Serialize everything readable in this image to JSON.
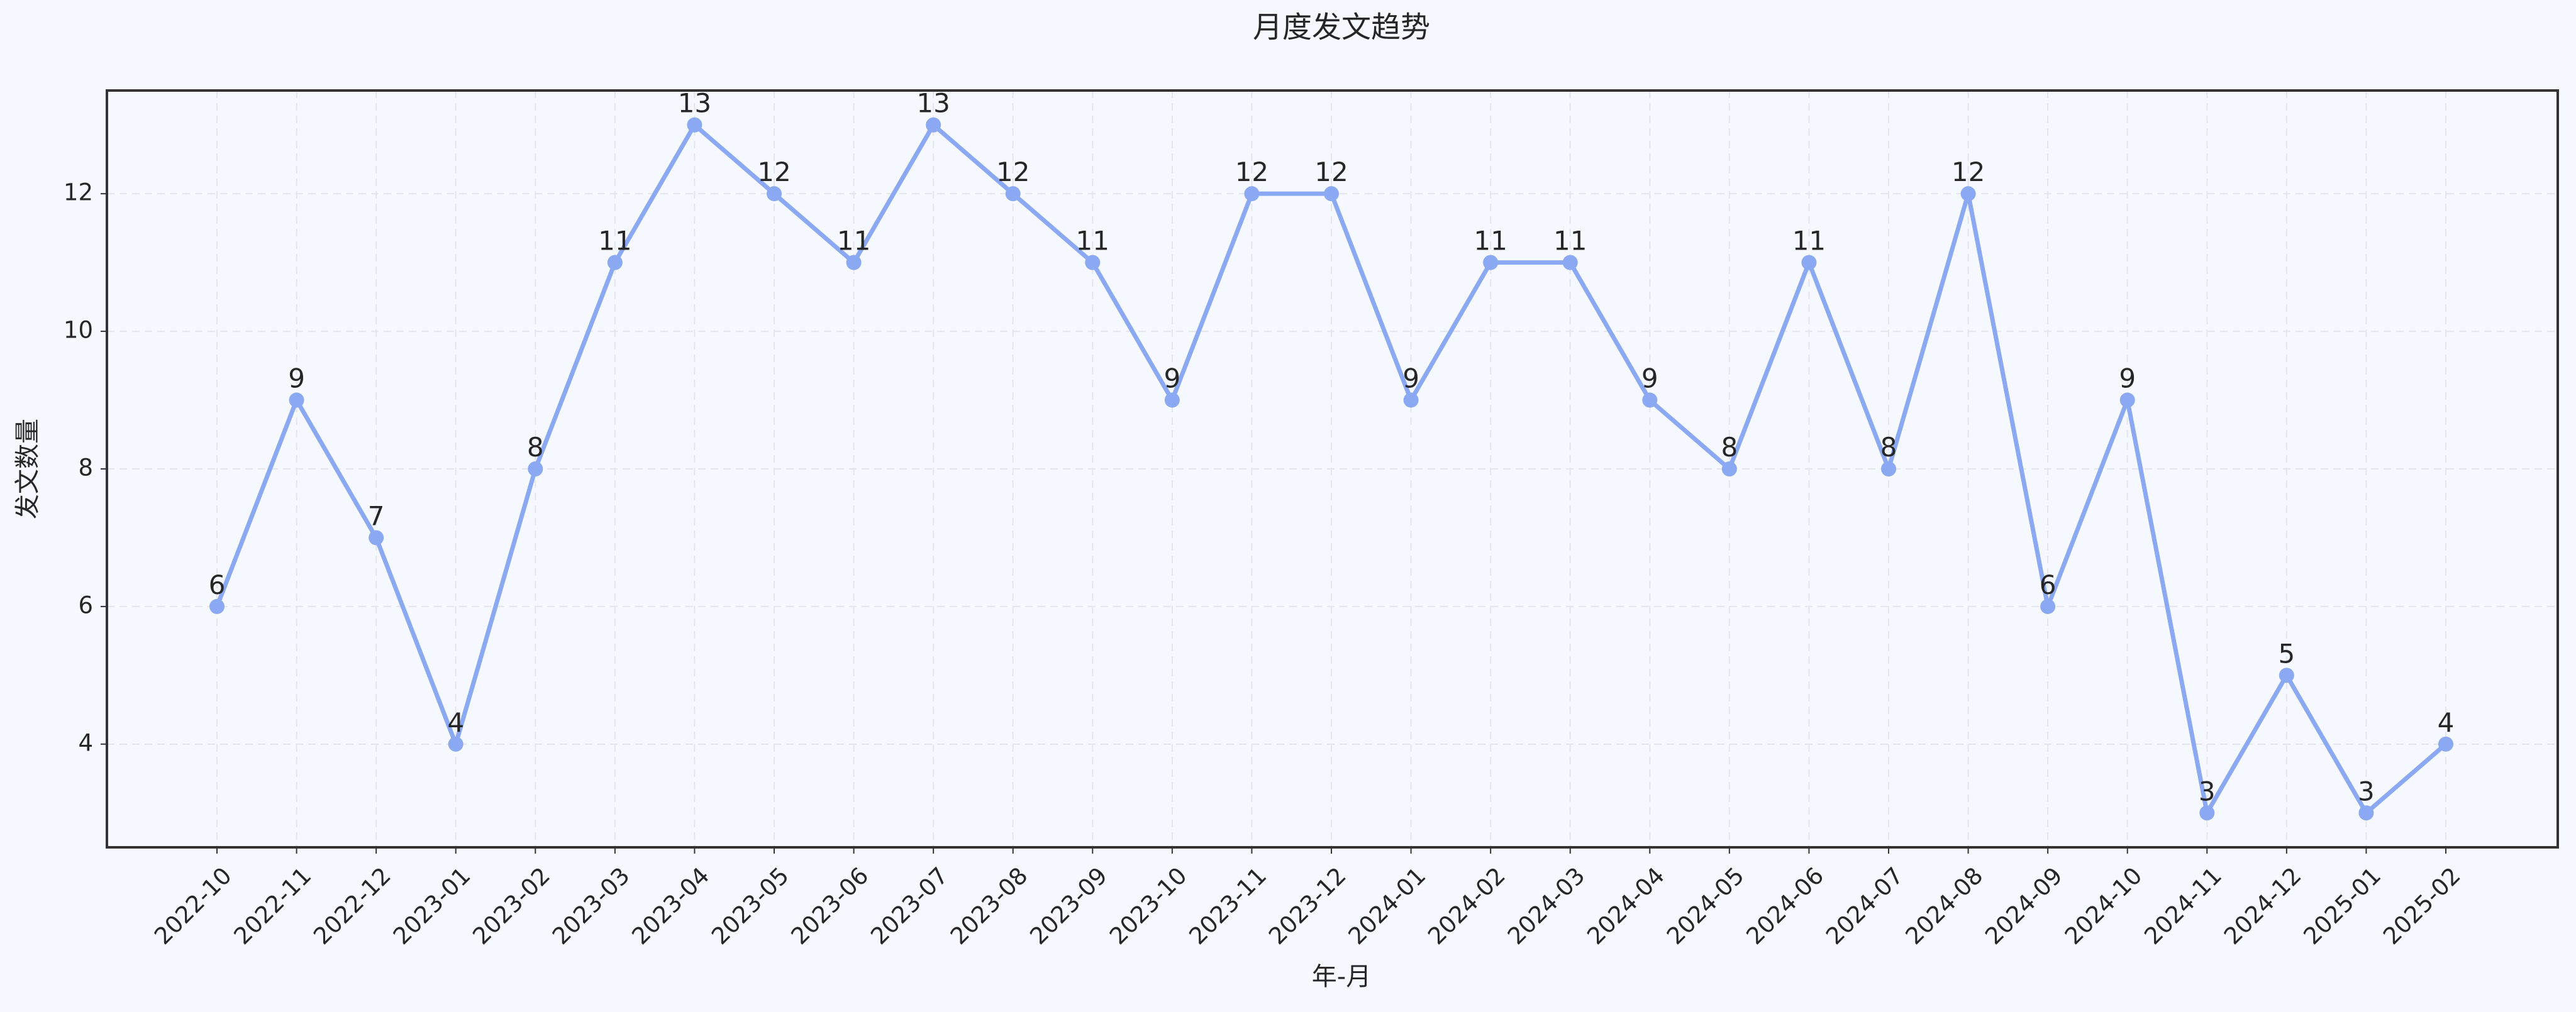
{
  "chart_data": {
    "type": "line",
    "title": "月度发文趋势",
    "x_label": "年-月",
    "y_label": "发文数量",
    "categories": [
      "2022-10",
      "2022-11",
      "2022-12",
      "2023-01",
      "2023-02",
      "2023-03",
      "2023-04",
      "2023-05",
      "2023-06",
      "2023-07",
      "2023-08",
      "2023-09",
      "2023-10",
      "2023-11",
      "2023-12",
      "2024-01",
      "2024-02",
      "2024-03",
      "2024-04",
      "2024-05",
      "2024-06",
      "2024-07",
      "2024-08",
      "2024-09",
      "2024-10",
      "2024-11",
      "2024-12",
      "2025-01",
      "2025-02"
    ],
    "values": [
      6,
      9,
      7,
      4,
      8,
      11,
      13,
      12,
      11,
      13,
      12,
      11,
      9,
      12,
      12,
      9,
      11,
      11,
      9,
      8,
      11,
      8,
      12,
      6,
      9,
      3,
      5,
      3,
      4
    ],
    "color": "#8aa9f2",
    "ylim": [
      2.5,
      13.5
    ],
    "yticks": [
      4,
      6,
      8,
      10,
      12
    ],
    "grid": true
  }
}
